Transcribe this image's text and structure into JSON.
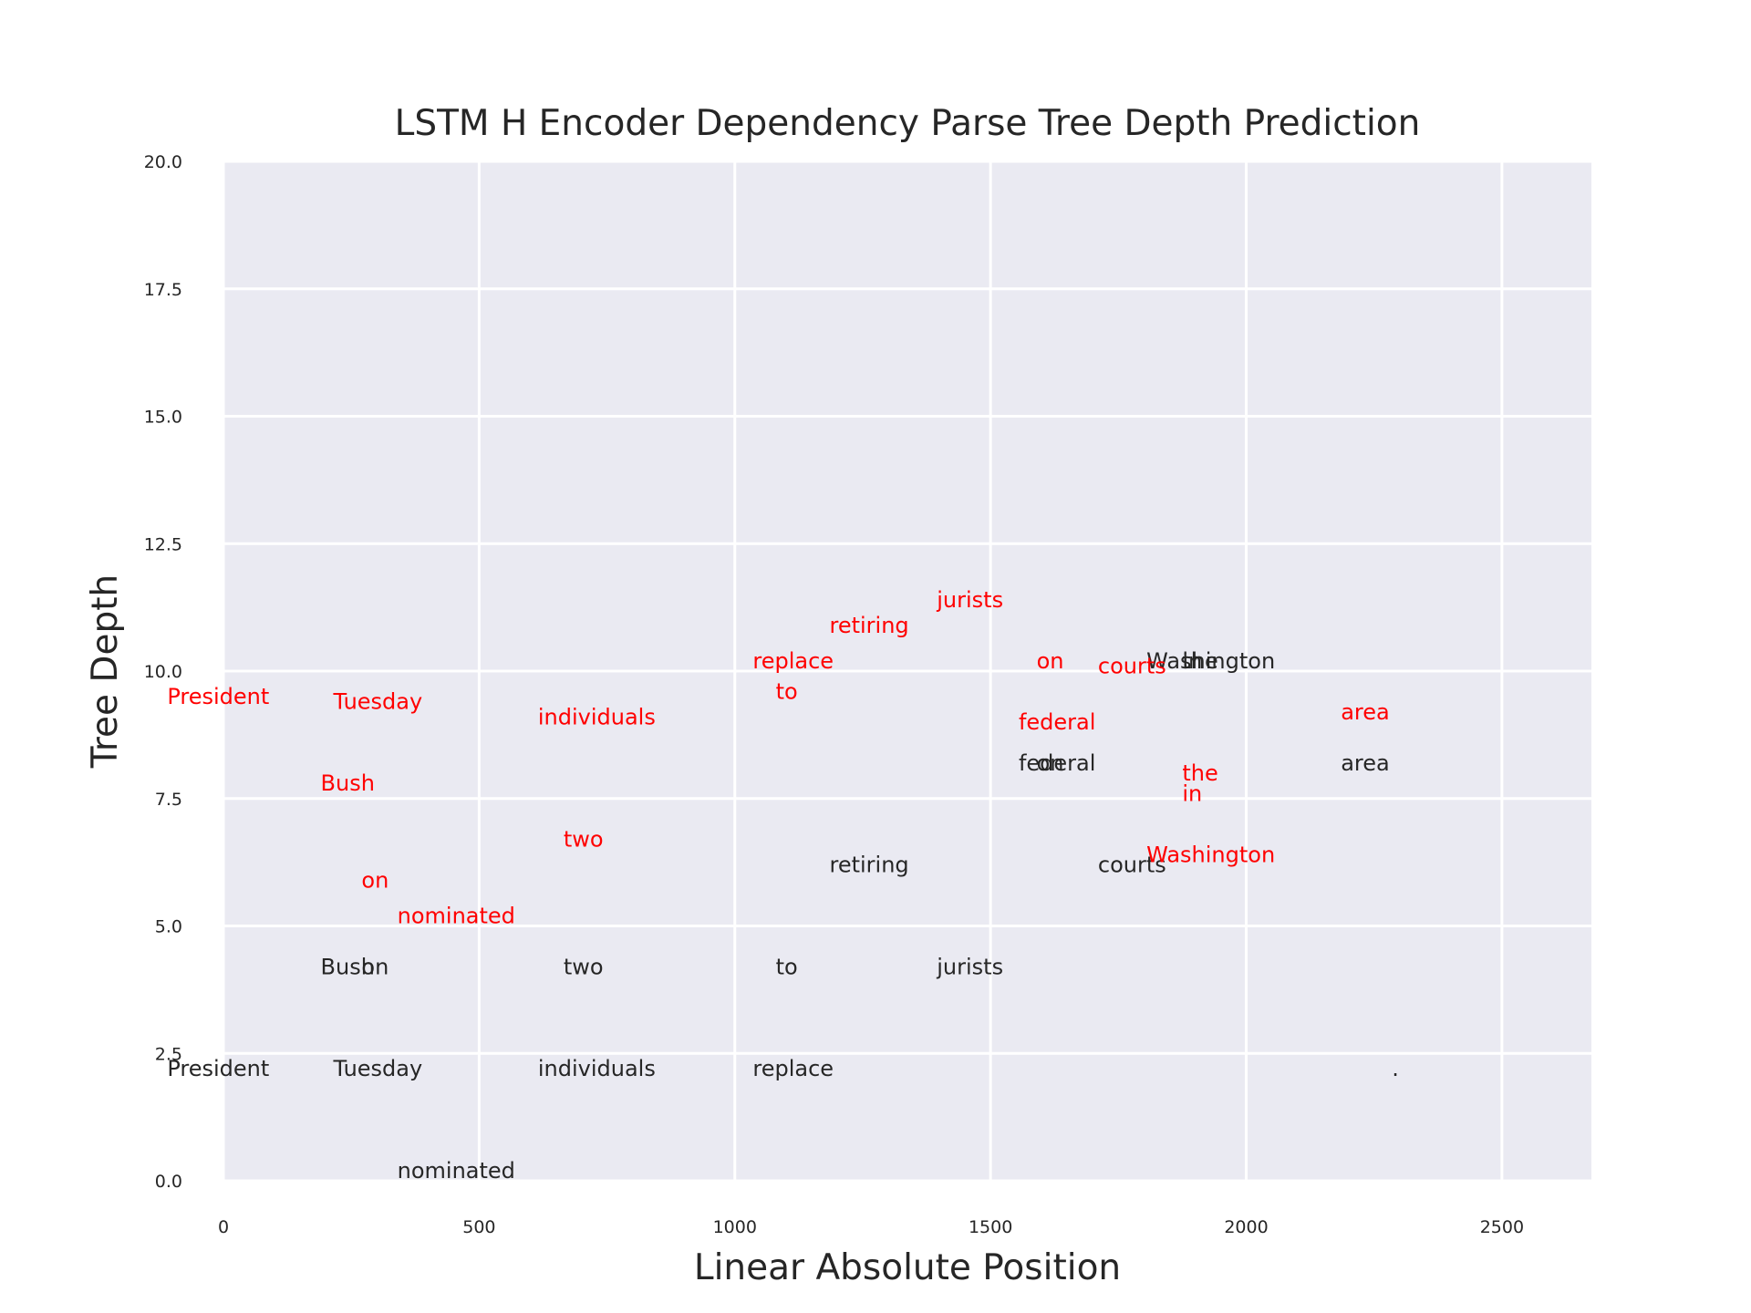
{
  "chart_data": {
    "type": "scatter",
    "title": "LSTM H Encoder Dependency Parse Tree Depth Prediction",
    "xlabel": "Linear Absolute Position",
    "ylabel": "Tree Depth",
    "xlim": [
      0,
      2675
    ],
    "ylim": [
      0,
      20
    ],
    "xticks": [
      0,
      500,
      1000,
      1500,
      2000,
      2500
    ],
    "yticks": [
      0.0,
      2.5,
      5.0,
      7.5,
      10.0,
      12.5,
      15.0,
      17.5,
      20.0
    ],
    "xtick_labels": [
      "0",
      "500",
      "1000",
      "1500",
      "2000",
      "2500"
    ],
    "ytick_labels": [
      "0.0",
      "2.5",
      "5.0",
      "7.5",
      "10.0",
      "12.5",
      "15.0",
      "17.5",
      "20.0"
    ],
    "grid": true,
    "background": "#eaeaf2",
    "series": [
      {
        "color": "#262626",
        "points": [
          {
            "word": "President",
            "x": -110,
            "y": 2.0
          },
          {
            "word": "Bush",
            "x": 190,
            "y": 4.0
          },
          {
            "word": "on",
            "x": 270,
            "y": 4.0
          },
          {
            "word": "Tuesday",
            "x": 215,
            "y": 2.0
          },
          {
            "word": "nominated",
            "x": 340,
            "y": 0.0
          },
          {
            "word": "two",
            "x": 665,
            "y": 4.0
          },
          {
            "word": "individuals",
            "x": 615,
            "y": 2.0
          },
          {
            "word": "to",
            "x": 1080,
            "y": 4.0
          },
          {
            "word": "replace",
            "x": 1035,
            "y": 2.0
          },
          {
            "word": "retiring",
            "x": 1185,
            "y": 6.0
          },
          {
            "word": "jurists",
            "x": 1395,
            "y": 4.0
          },
          {
            "word": "on",
            "x": 1590,
            "y": 8.0
          },
          {
            "word": "federal",
            "x": 1555,
            "y": 8.0
          },
          {
            "word": "courts",
            "x": 1710,
            "y": 6.0
          },
          {
            "word": "in",
            "x": 1875,
            "y": 10.0
          },
          {
            "word": "the",
            "x": 1875,
            "y": 10.0
          },
          {
            "word": "Washington",
            "x": 1805,
            "y": 10.0
          },
          {
            "word": "area",
            "x": 2185,
            "y": 8.0
          },
          {
            "word": ".",
            "x": 2285,
            "y": 2.0
          }
        ]
      },
      {
        "color": "#ff0000",
        "points": [
          {
            "word": "President",
            "x": -110,
            "y": 9.3
          },
          {
            "word": "Bush",
            "x": 190,
            "y": 7.6
          },
          {
            "word": "on",
            "x": 270,
            "y": 5.7
          },
          {
            "word": "Tuesday",
            "x": 215,
            "y": 9.2
          },
          {
            "word": "nominated",
            "x": 340,
            "y": 5.0
          },
          {
            "word": "two",
            "x": 665,
            "y": 6.5
          },
          {
            "word": "individuals",
            "x": 615,
            "y": 8.9
          },
          {
            "word": "to",
            "x": 1080,
            "y": 9.4
          },
          {
            "word": "replace",
            "x": 1035,
            "y": 10.0
          },
          {
            "word": "retiring",
            "x": 1185,
            "y": 10.7
          },
          {
            "word": "jurists",
            "x": 1395,
            "y": 11.2
          },
          {
            "word": "on",
            "x": 1590,
            "y": 10.0
          },
          {
            "word": "federal",
            "x": 1555,
            "y": 8.8
          },
          {
            "word": "courts",
            "x": 1710,
            "y": 9.9
          },
          {
            "word": "in",
            "x": 1875,
            "y": 7.4
          },
          {
            "word": "the",
            "x": 1875,
            "y": 7.8
          },
          {
            "word": "Washington",
            "x": 1805,
            "y": 6.2
          },
          {
            "word": "area",
            "x": 2185,
            "y": 9.0
          }
        ]
      }
    ]
  }
}
